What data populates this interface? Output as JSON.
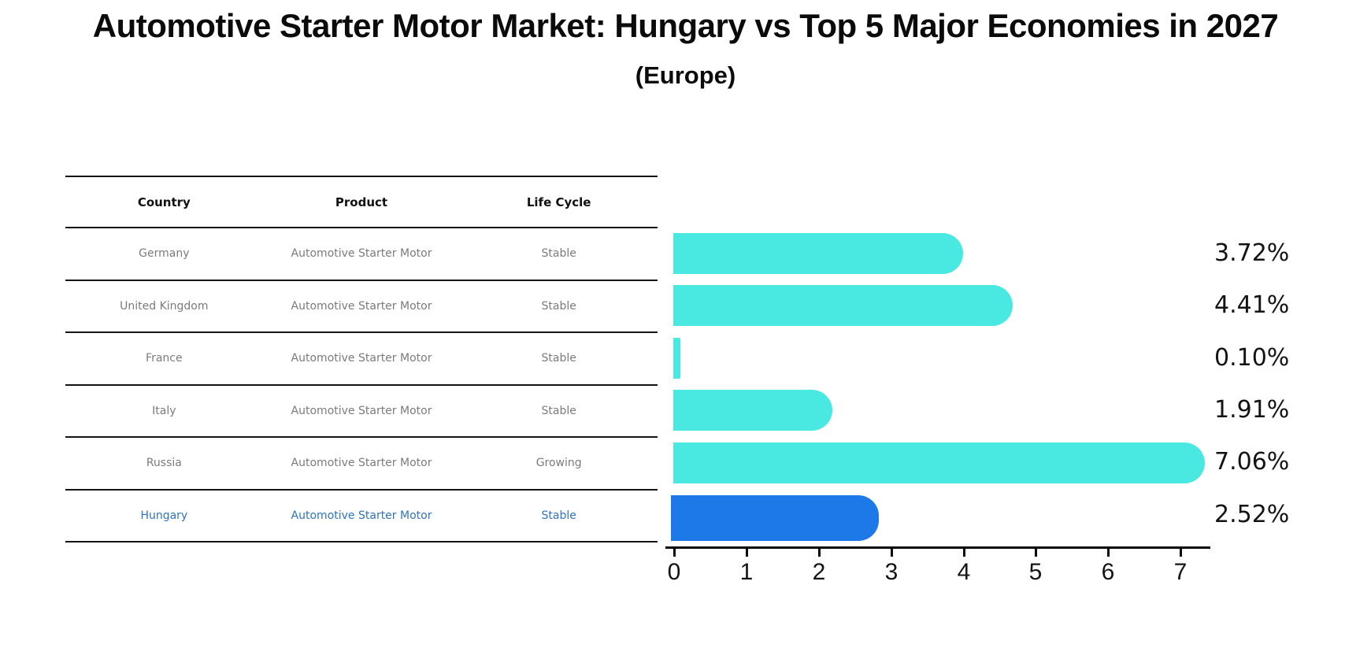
{
  "title": "Automotive Starter Motor Market: Hungary vs Top 5 Major Economies in 2027",
  "subtitle": "(Europe)",
  "table": {
    "headers": [
      "Country",
      "Product",
      "Life Cycle"
    ],
    "rows": [
      {
        "country": "Germany",
        "product": "Automotive Starter Motor",
        "life_cycle": "Stable"
      },
      {
        "country": "United Kingdom",
        "product": "Automotive Starter Motor",
        "life_cycle": "Stable"
      },
      {
        "country": "France",
        "product": "Automotive Starter Motor",
        "life_cycle": "Stable"
      },
      {
        "country": "Italy",
        "product": "Automotive Starter Motor",
        "life_cycle": "Stable"
      },
      {
        "country": "Russia",
        "product": "Automotive Starter Motor",
        "life_cycle": "Growing"
      },
      {
        "country": "Hungary",
        "product": "Automotive Starter Motor",
        "life_cycle": "Stable"
      }
    ]
  },
  "chart_data": {
    "type": "bar",
    "orientation": "horizontal",
    "categories": [
      "Germany",
      "United Kingdom",
      "France",
      "Italy",
      "Russia",
      "Hungary"
    ],
    "values": [
      3.72,
      4.41,
      0.1,
      1.91,
      7.06,
      2.52
    ],
    "labels": [
      "3.72%",
      "4.41%",
      "0.10%",
      "1.91%",
      "7.06%",
      "2.52%"
    ],
    "xlim": [
      0,
      7.5
    ],
    "xticks": [
      0,
      1,
      2,
      3,
      4,
      5,
      6,
      7
    ],
    "grid": false,
    "legend": "none",
    "bar_color": "#49e8e1",
    "highlight_color": "#1e79e8",
    "highlight_index": 5,
    "highlight_text_color": "#2e74be"
  }
}
